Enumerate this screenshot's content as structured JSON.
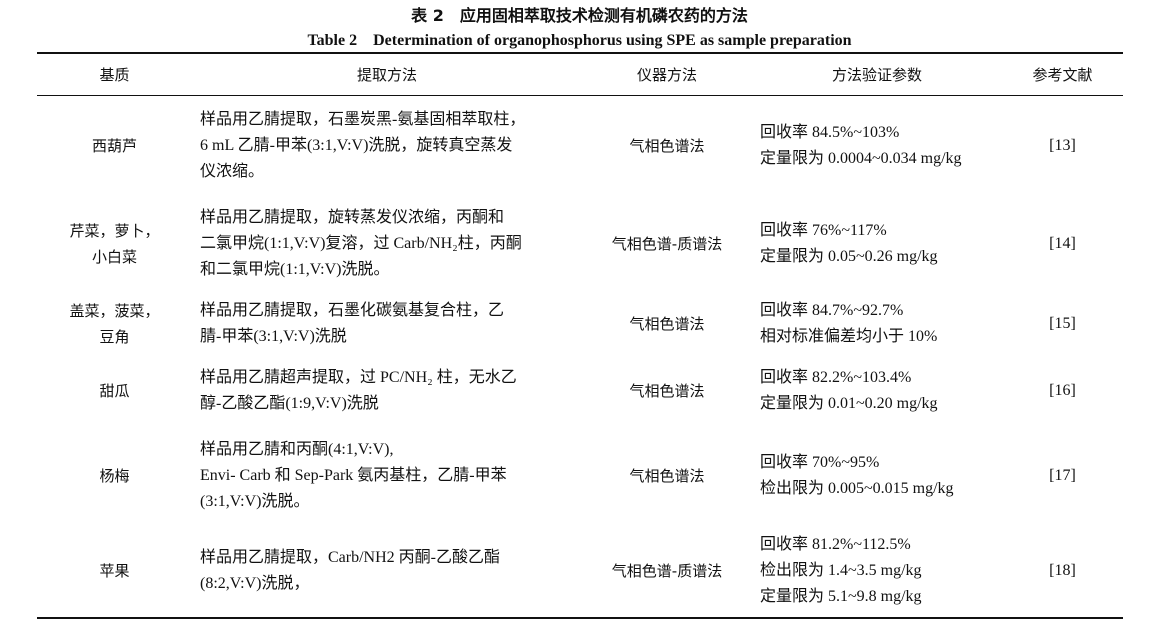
{
  "caption": {
    "zh": "表 2　应用固相萃取技术检测有机磷农药的方法",
    "en": "Table 2　Determination of organophosphorus using SPE as sample preparation"
  },
  "headers": [
    "基质",
    "提取方法",
    "仪器方法",
    "方法验证参数",
    "参考文献"
  ],
  "rows": [
    {
      "matrix": [
        "西葫芦"
      ],
      "extraction": [
        "样品用乙腈提取，石墨炭黑-氨基固相萃取柱，",
        "6 mL 乙腈-甲苯(3:1,V:V)洗脱，旋转真空蒸发",
        "仪浓缩。"
      ],
      "instrument": "气相色谱法",
      "validation": [
        "回收率 84.5%~103%",
        "定量限为 0.0004~0.034 mg/kg"
      ],
      "ref": "[13]"
    },
    {
      "matrix": [
        "芹菜，萝卜，",
        "小白菜"
      ],
      "extraction": [
        "样品用乙腈提取，旋转蒸发仪浓缩，丙酮和",
        "二氯甲烷(1:1,V:V)复溶，过 Carb/NH₂柱，丙酮",
        "和二氯甲烷(1:1,V:V)洗脱。"
      ],
      "instrument": "气相色谱-质谱法",
      "validation": [
        "回收率 76%~117%",
        "定量限为 0.05~0.26 mg/kg"
      ],
      "ref": "[14]"
    },
    {
      "matrix": [
        "盖菜，菠菜，",
        "豆角"
      ],
      "extraction": [
        "样品用乙腈提取，石墨化碳氨基复合柱，乙",
        "腈-甲苯(3:1,V:V)洗脱"
      ],
      "instrument": "气相色谱法",
      "validation": [
        "回收率 84.7%~92.7%",
        "相对标准偏差均小于 10%"
      ],
      "ref": "[15]"
    },
    {
      "matrix": [
        "甜瓜"
      ],
      "extraction": [
        "样品用乙腈超声提取，过 PC/NH₂ 柱，无水乙",
        "醇-乙酸乙酯(1:9,V:V)洗脱"
      ],
      "instrument": "气相色谱法",
      "validation": [
        "回收率 82.2%~103.4%",
        "定量限为 0.01~0.20 mg/kg"
      ],
      "ref": "[16]"
    },
    {
      "matrix": [
        "杨梅"
      ],
      "extraction": [
        "样品用乙腈和丙酮(4:1,V:V),",
        "Envi- Carb 和 Sep-Park 氨丙基柱，乙腈-甲苯",
        "(3:1,V:V)洗脱。"
      ],
      "instrument": "气相色谱法",
      "validation": [
        "回收率 70%~95%",
        "检出限为 0.005~0.015 mg/kg"
      ],
      "ref": "[17]"
    },
    {
      "matrix": [
        "苹果"
      ],
      "extraction": [
        "样品用乙腈提取，Carb/NH2 丙酮-乙酸乙酯",
        "(8:2,V:V)洗脱，"
      ],
      "instrument": "气相色谱-质谱法",
      "validation": [
        "回收率 81.2%~112.5%",
        "检出限为 1.4~3.5 mg/kg",
        "定量限为 5.1~9.8 mg/kg"
      ],
      "ref": "[18]"
    }
  ]
}
